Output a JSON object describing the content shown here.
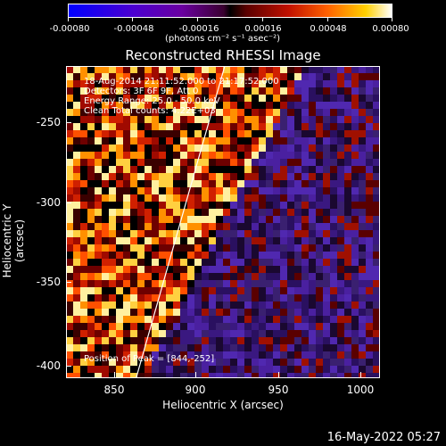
{
  "colorbar": {
    "ticks": [
      "-0.00080",
      "-0.00048",
      "-0.00016",
      "0.00016",
      "0.00048",
      "0.00080"
    ],
    "unit": "(photons cm⁻² s⁻¹ asec⁻²)"
  },
  "title": "Reconstructed RHESSI Image",
  "annotations": {
    "time": "18-Aug-2014 21:11:52.000 to 21:17:52.000",
    "detectors": "Detectors: 3F 6F 9F, Att 0",
    "energy": "Energy Range: 25.0 - 50.0 keV",
    "method": "Clean     Total counts: 4.22E+03",
    "peak": "Position of Peak = [844,-252]"
  },
  "axes": {
    "xlabel": "Heliocentric X (arcsec)",
    "ylabel": "Heliocentric Y (arcsec)",
    "xticks": [
      "850",
      "900",
      "950",
      "1000"
    ],
    "yticks": [
      "-250",
      "-300",
      "-350",
      "-400"
    ]
  },
  "footer": {
    "date": "16-May-2022 05:27"
  },
  "colors": {
    "bg": "#000000",
    "text": "#ffffff"
  }
}
